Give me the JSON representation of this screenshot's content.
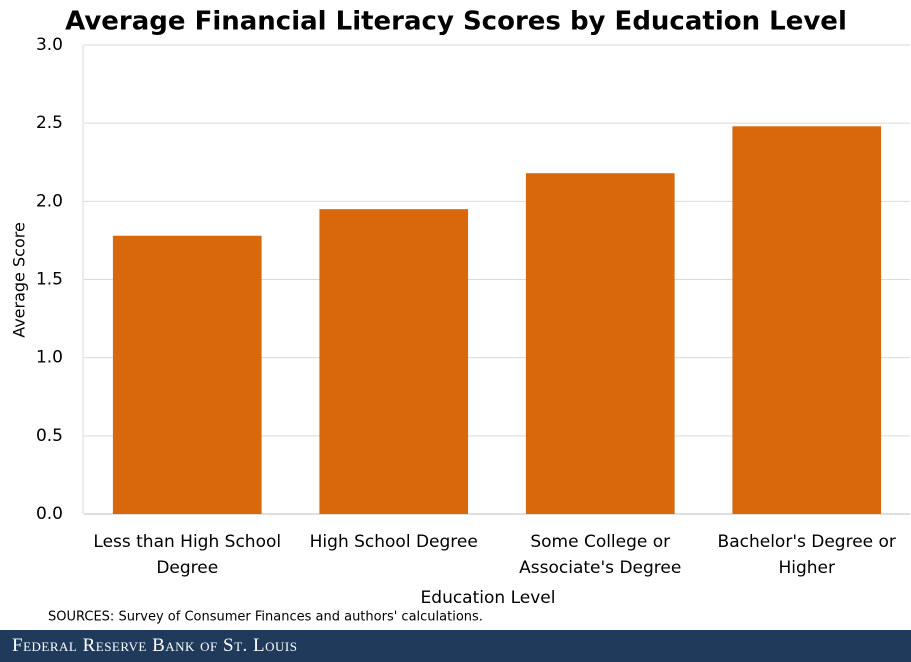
{
  "chart_data": {
    "type": "bar",
    "title": "Average Financial Literacy Scores by Education Level",
    "categories": [
      "Less than High School Degree",
      "High School Degree",
      "Some College or Associate's Degree",
      "Bachelor's Degree or Higher"
    ],
    "values": [
      1.78,
      1.95,
      2.18,
      2.48
    ],
    "color": "#d8680b",
    "ylim": [
      0,
      3
    ],
    "yticks": [
      {
        "value": 0,
        "label": "0.0"
      },
      0.5,
      {
        "value": 1,
        "label": "1.0"
      },
      1.5,
      {
        "value": 2,
        "label": "2.0"
      },
      2.5,
      {
        "value": 3,
        "label": "3.0"
      }
    ],
    "grid": true,
    "ylabel": "Average Score",
    "xlabel": "Education Level",
    "source": "SOURCES: Survey of Consumer Finances and authors' calculations.",
    "footer": "Federal Reserve Bank of St. Louis"
  }
}
